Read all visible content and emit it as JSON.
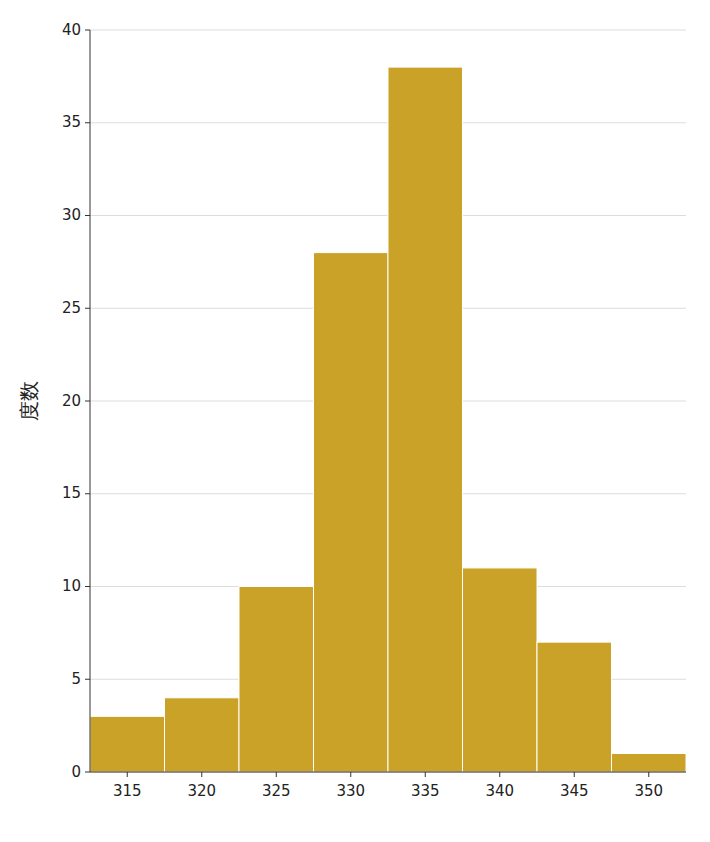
{
  "chart_data": {
    "type": "bar",
    "ylabel": "度数",
    "categories": [
      315,
      320,
      325,
      330,
      335,
      340,
      345,
      350
    ],
    "values": [
      3,
      4,
      10,
      28,
      38,
      11,
      7,
      1
    ],
    "color": "#C9A227",
    "ylim": [
      0,
      40
    ],
    "yticks": [
      0,
      5,
      10,
      15,
      20,
      25,
      30,
      35,
      40
    ],
    "grid": true
  }
}
